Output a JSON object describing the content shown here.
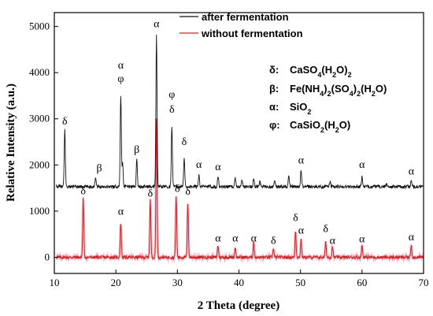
{
  "chart_data": {
    "type": "line",
    "xlabel": "2 Theta (degree)",
    "ylabel": "Relative Intensity (a.u.)",
    "xlim": [
      10,
      70
    ],
    "ylim": [
      -350,
      5300
    ],
    "x_ticks": [
      10,
      20,
      30,
      40,
      50,
      60,
      70
    ],
    "y_ticks": [
      0,
      1000,
      2000,
      3000,
      4000,
      5000
    ],
    "grid": false,
    "legend_position": "top-center",
    "series": [
      {
        "name": "after fermentation",
        "color": "#111111",
        "baseline": 1530,
        "peaks": [
          {
            "x": 11.7,
            "y": 2760
          },
          {
            "x": 16.7,
            "y": 1750
          },
          {
            "x": 20.8,
            "y": 3520
          },
          {
            "x": 21.1,
            "y": 2050
          },
          {
            "x": 23.4,
            "y": 2120
          },
          {
            "x": 26.6,
            "y": 4850
          },
          {
            "x": 29.1,
            "y": 2850
          },
          {
            "x": 31.1,
            "y": 2150
          },
          {
            "x": 33.5,
            "y": 1800
          },
          {
            "x": 36.6,
            "y": 1760
          },
          {
            "x": 39.4,
            "y": 1720
          },
          {
            "x": 40.5,
            "y": 1660
          },
          {
            "x": 42.4,
            "y": 1720
          },
          {
            "x": 43.4,
            "y": 1650
          },
          {
            "x": 45.8,
            "y": 1680
          },
          {
            "x": 48.1,
            "y": 1750
          },
          {
            "x": 50.1,
            "y": 1880
          },
          {
            "x": 54.8,
            "y": 1650
          },
          {
            "x": 60.0,
            "y": 1750
          },
          {
            "x": 64.0,
            "y": 1600
          },
          {
            "x": 68.0,
            "y": 1650
          }
        ]
      },
      {
        "name": "without fermentation",
        "color": "#c62828",
        "baseline": 0,
        "peaks": [
          {
            "x": 14.7,
            "y": 1270
          },
          {
            "x": 20.8,
            "y": 750
          },
          {
            "x": 25.6,
            "y": 1250
          },
          {
            "x": 26.6,
            "y": 3000
          },
          {
            "x": 29.8,
            "y": 1330
          },
          {
            "x": 31.7,
            "y": 1150
          },
          {
            "x": 36.6,
            "y": 260
          },
          {
            "x": 39.4,
            "y": 220
          },
          {
            "x": 42.4,
            "y": 330
          },
          {
            "x": 45.6,
            "y": 200
          },
          {
            "x": 49.2,
            "y": 580
          },
          {
            "x": 50.1,
            "y": 380
          },
          {
            "x": 54.1,
            "y": 320
          },
          {
            "x": 55.2,
            "y": 240
          },
          {
            "x": 60.0,
            "y": 260
          },
          {
            "x": 68.0,
            "y": 270
          }
        ]
      }
    ],
    "annotations": [
      {
        "text": "δ",
        "x": 11.7,
        "y": 2840
      },
      {
        "text": "β",
        "x": 17.3,
        "y": 1830
      },
      {
        "text": "α",
        "x": 20.8,
        "y": 4050
      },
      {
        "text": "φ",
        "x": 20.8,
        "y": 3760
      },
      {
        "text": "β",
        "x": 23.4,
        "y": 2230
      },
      {
        "text": "α",
        "x": 26.6,
        "y": 4950
      },
      {
        "text": "φ",
        "x": 29.1,
        "y": 3420
      },
      {
        "text": "δ",
        "x": 29.1,
        "y": 3100
      },
      {
        "text": "δ",
        "x": 31.1,
        "y": 2400
      },
      {
        "text": "α",
        "x": 33.5,
        "y": 1900
      },
      {
        "text": "α",
        "x": 36.6,
        "y": 1850
      },
      {
        "text": "α",
        "x": 50.1,
        "y": 2000
      },
      {
        "text": "α",
        "x": 60.0,
        "y": 1900
      },
      {
        "text": "α",
        "x": 68.0,
        "y": 1760
      },
      {
        "text": "δ",
        "x": 14.7,
        "y": 1330
      },
      {
        "text": "α",
        "x": 20.8,
        "y": 890
      },
      {
        "text": "δ",
        "x": 25.6,
        "y": 1280
      },
      {
        "text": "δ",
        "x": 30.0,
        "y": 1380
      },
      {
        "text": "δ",
        "x": 31.7,
        "y": 1320
      },
      {
        "text": "α",
        "x": 36.6,
        "y": 310
      },
      {
        "text": "α",
        "x": 39.4,
        "y": 310
      },
      {
        "text": "α",
        "x": 42.4,
        "y": 310
      },
      {
        "text": "δ",
        "x": 45.6,
        "y": 260
      },
      {
        "text": "δ",
        "x": 49.2,
        "y": 750
      },
      {
        "text": "α",
        "x": 50.1,
        "y": 480
      },
      {
        "text": "δ",
        "x": 54.1,
        "y": 510
      },
      {
        "text": "α",
        "x": 55.2,
        "y": 260
      },
      {
        "text": "α",
        "x": 60.0,
        "y": 290
      },
      {
        "text": "α",
        "x": 68.0,
        "y": 330
      }
    ],
    "phase_key": [
      {
        "symbol": "δ:",
        "formula": "CaSO4(H2O)2"
      },
      {
        "symbol": "β:",
        "formula": "Fe(NH4)2(SO4)2(H2O)"
      },
      {
        "symbol": "α:",
        "formula": "SiO2"
      },
      {
        "symbol": "φ:",
        "formula": "CaSiO2(H2O)"
      }
    ]
  }
}
